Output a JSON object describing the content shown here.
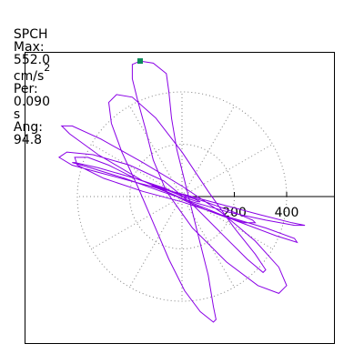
{
  "header": {
    "station": "SPCH",
    "max_label": "Max:",
    "max_value": "552.0",
    "max_unit": "cm/s",
    "max_unit_exp": "2",
    "per_label": "Per:",
    "per_value": "0.090",
    "per_unit": "s",
    "ang_label": "Ang:",
    "ang_value": "94.8"
  },
  "chart_data": {
    "type": "polar-orbit",
    "radial_ticks": [
      "200",
      "400"
    ],
    "radial_tick_values": [
      200,
      400
    ],
    "grid": "dotted polar (2 rings, 30° spokes)",
    "end_marker": "square",
    "colors": {
      "trace": "#8a00e6",
      "marker": "#0a8a5a",
      "grid": "#808080",
      "frame": "#000000"
    },
    "orbit": [
      [
        0,
        0
      ],
      [
        -60,
        30
      ],
      [
        -180,
        70
      ],
      [
        -280,
        120
      ],
      [
        -360,
        150
      ],
      [
        -410,
        150
      ],
      [
        -400,
        120
      ],
      [
        -300,
        70
      ],
      [
        -150,
        20
      ],
      [
        0,
        -20
      ],
      [
        150,
        -70
      ],
      [
        320,
        -120
      ],
      [
        430,
        -160
      ],
      [
        440,
        -175
      ],
      [
        360,
        -150
      ],
      [
        200,
        -90
      ],
      [
        30,
        -20
      ],
      [
        -150,
        60
      ],
      [
        -320,
        160
      ],
      [
        -430,
        240
      ],
      [
        -460,
        270
      ],
      [
        -420,
        270
      ],
      [
        -310,
        220
      ],
      [
        -150,
        130
      ],
      [
        0,
        40
      ],
      [
        150,
        -60
      ],
      [
        280,
        -170
      ],
      [
        370,
        -270
      ],
      [
        400,
        -340
      ],
      [
        370,
        -370
      ],
      [
        290,
        -340
      ],
      [
        170,
        -250
      ],
      [
        40,
        -120
      ],
      [
        -60,
        20
      ],
      [
        -110,
        140
      ],
      [
        -140,
        260
      ],
      [
        -170,
        370
      ],
      [
        -190,
        450
      ],
      [
        -190,
        505
      ],
      [
        -160,
        518
      ],
      [
        -110,
        510
      ],
      [
        -60,
        470
      ],
      [
        -50,
        400
      ],
      [
        -40,
        300
      ],
      [
        -20,
        180
      ],
      [
        10,
        60
      ],
      [
        40,
        -60
      ],
      [
        70,
        -180
      ],
      [
        100,
        -300
      ],
      [
        120,
        -420
      ],
      [
        130,
        -470
      ],
      [
        120,
        -480
      ],
      [
        70,
        -440
      ],
      [
        10,
        -360
      ],
      [
        -50,
        -240
      ],
      [
        -110,
        -100
      ],
      [
        -170,
        40
      ],
      [
        -230,
        170
      ],
      [
        -270,
        280
      ],
      [
        -280,
        360
      ],
      [
        -250,
        390
      ],
      [
        -190,
        380
      ],
      [
        -100,
        300
      ],
      [
        0,
        170
      ],
      [
        100,
        20
      ],
      [
        200,
        -120
      ],
      [
        280,
        -220
      ],
      [
        320,
        -280
      ],
      [
        310,
        -290
      ],
      [
        250,
        -240
      ],
      [
        150,
        -140
      ],
      [
        40,
        -30
      ],
      [
        -70,
        60
      ],
      [
        -200,
        120
      ],
      [
        -340,
        160
      ],
      [
        -440,
        170
      ],
      [
        -470,
        150
      ],
      [
        -420,
        120
      ],
      [
        -310,
        90
      ],
      [
        -160,
        50
      ],
      [
        0,
        10
      ],
      [
        150,
        -30
      ],
      [
        300,
        -70
      ],
      [
        420,
        -100
      ],
      [
        470,
        -110
      ],
      [
        430,
        -110
      ],
      [
        320,
        -90
      ],
      [
        180,
        -60
      ],
      [
        40,
        -20
      ],
      [
        -80,
        20
      ],
      [
        -220,
        70
      ],
      [
        -350,
        110
      ],
      [
        -420,
        130
      ],
      [
        -410,
        130
      ],
      [
        -320,
        110
      ],
      [
        -180,
        70
      ],
      [
        -40,
        20
      ],
      [
        90,
        -20
      ],
      [
        200,
        -60
      ],
      [
        270,
        -90
      ],
      [
        280,
        -100
      ],
      [
        240,
        -100
      ],
      [
        170,
        -80
      ],
      [
        90,
        -50
      ],
      [
        20,
        -20
      ],
      [
        -40,
        10
      ],
      [
        -90,
        30
      ],
      [
        -120,
        40
      ],
      [
        -110,
        40
      ],
      [
        -70,
        30
      ],
      [
        -20,
        10
      ],
      [
        30,
        -10
      ],
      [
        60,
        -20
      ],
      [
        70,
        -20
      ],
      [
        50,
        -10
      ],
      [
        20,
        0
      ],
      [
        0,
        0
      ]
    ]
  }
}
